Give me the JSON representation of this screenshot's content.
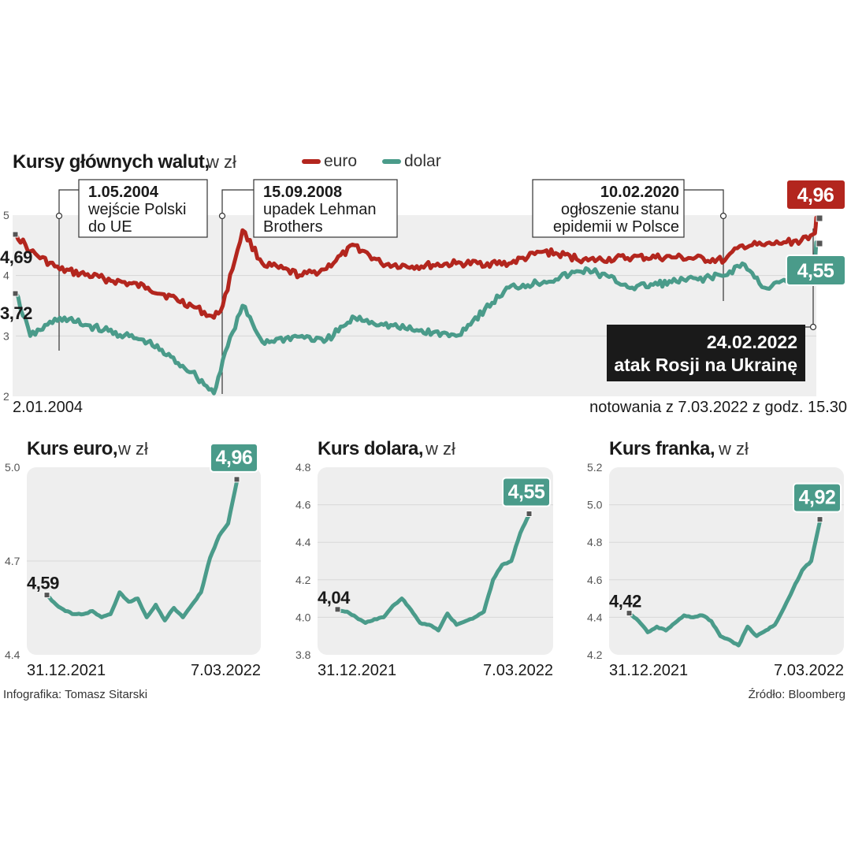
{
  "main_chart": {
    "title": "Kursy głównych walut,",
    "title_unit": "w zł",
    "legend": [
      {
        "label": "euro",
        "color": "#b3261e"
      },
      {
        "label": "dolar",
        "color": "#4a9b8a"
      }
    ],
    "x_start_label": "2.01.2004",
    "note": "notowania z 7.03.2022 z godz. 15.30",
    "y_ticks": [
      "5",
      "4",
      "3",
      "2"
    ],
    "euro_start_label": "4,69",
    "dollar_start_label": "3,72",
    "euro_end_label": "4,96",
    "dollar_end_label": "4,55",
    "annotations": [
      {
        "date": "1.05.2004",
        "lines": [
          "wejście Polski",
          "do UE"
        ]
      },
      {
        "date": "15.09.2008",
        "lines": [
          "upadek Lehman",
          "Brothers"
        ]
      },
      {
        "date": "10.02.2020",
        "lines": [
          "ogłoszenie stanu",
          "epidemii w Polsce"
        ]
      },
      {
        "date": "24.02.2022",
        "lines": [
          "atak Rosji na Ukrainę"
        ]
      }
    ]
  },
  "small_charts": [
    {
      "title": "Kurs euro,",
      "unit": "w zł",
      "y_ticks": [
        "5.0",
        "4.7",
        "4.4"
      ],
      "start_label": "4,59",
      "end_label": "4,96",
      "x_start": "31.12.2021",
      "x_end": "7.03.2022"
    },
    {
      "title": "Kurs dolara,",
      "unit": "w zł",
      "y_ticks": [
        "4.8",
        "4.6",
        "4.4",
        "4.2",
        "4.0",
        "3.8"
      ],
      "start_label": "4,04",
      "end_label": "4,55",
      "x_start": "31.12.2021",
      "x_end": "7.03.2022"
    },
    {
      "title": "Kurs franka,",
      "unit": "w zł",
      "y_ticks": [
        "5.2",
        "5.0",
        "4.8",
        "4.6",
        "4.4",
        "4.2"
      ],
      "start_label": "4,42",
      "end_label": "4,92",
      "x_start": "31.12.2021",
      "x_end": "7.03.2022"
    }
  ],
  "footer": {
    "left": "Infografika: Tomasz Sitarski",
    "right": "Źródło: Bloomberg"
  },
  "chart_data": [
    {
      "type": "line",
      "title": "Kursy głównych walut, w zł",
      "ylim": [
        2,
        5
      ],
      "x": [
        2004.0,
        2004.33,
        2005.0,
        2006.0,
        2007.0,
        2008.0,
        2008.5,
        2008.7,
        2009.15,
        2009.6,
        2010.5,
        2011.0,
        2011.7,
        2012.3,
        2013.0,
        2014.0,
        2015.2,
        2016.0,
        2017.0,
        2018.0,
        2019.0,
        2020.1,
        2020.5,
        2021.0,
        2021.5,
        2022.0,
        2022.15,
        2022.18
      ],
      "series": [
        {
          "name": "euro",
          "color": "#b3261e",
          "values": [
            4.69,
            4.4,
            4.1,
            3.95,
            3.8,
            3.5,
            3.3,
            3.5,
            4.75,
            4.2,
            4.0,
            4.1,
            4.5,
            4.2,
            4.15,
            4.2,
            4.2,
            4.4,
            4.25,
            4.3,
            4.3,
            4.25,
            4.5,
            4.5,
            4.55,
            4.6,
            4.7,
            4.96
          ]
        },
        {
          "name": "dolar",
          "color": "#4a9b8a",
          "values": [
            3.72,
            3.0,
            3.3,
            3.1,
            2.9,
            2.4,
            2.05,
            2.6,
            3.5,
            2.9,
            3.0,
            2.9,
            3.3,
            3.2,
            3.1,
            3.0,
            3.8,
            3.9,
            4.1,
            3.8,
            3.9,
            4.0,
            4.2,
            3.8,
            3.9,
            4.0,
            4.2,
            4.55
          ]
        }
      ]
    },
    {
      "type": "line",
      "title": "Kurs euro, w zł",
      "ylim": [
        4.4,
        5.0
      ],
      "x_labels": [
        "31.12.2021",
        "7.03.2022"
      ],
      "series": [
        {
          "name": "",
          "color": "#4a9b8a",
          "values": [
            4.59,
            4.56,
            4.54,
            4.53,
            4.53,
            4.54,
            4.52,
            4.53,
            4.6,
            4.57,
            4.58,
            4.52,
            4.56,
            4.51,
            4.55,
            4.52,
            4.56,
            4.6,
            4.71,
            4.78,
            4.82,
            4.96
          ]
        }
      ]
    },
    {
      "type": "line",
      "title": "Kurs dolara, w zł",
      "ylim": [
        3.8,
        4.8
      ],
      "x_labels": [
        "31.12.2021",
        "7.03.2022"
      ],
      "series": [
        {
          "name": "",
          "color": "#4a9b8a",
          "values": [
            4.04,
            4.03,
            4.0,
            3.97,
            3.99,
            4.0,
            4.06,
            4.1,
            4.04,
            3.97,
            3.96,
            3.93,
            4.02,
            3.96,
            3.98,
            4.0,
            4.03,
            4.2,
            4.28,
            4.3,
            4.45,
            4.55
          ]
        }
      ]
    },
    {
      "type": "line",
      "title": "Kurs franka, w zł",
      "ylim": [
        4.2,
        5.2
      ],
      "x_labels": [
        "31.12.2021",
        "7.03.2022"
      ],
      "series": [
        {
          "name": "",
          "color": "#4a9b8a",
          "values": [
            4.42,
            4.38,
            4.32,
            4.35,
            4.33,
            4.37,
            4.41,
            4.4,
            4.41,
            4.38,
            4.3,
            4.28,
            4.25,
            4.35,
            4.3,
            4.33,
            4.36,
            4.45,
            4.55,
            4.65,
            4.7,
            4.92
          ]
        }
      ]
    }
  ]
}
